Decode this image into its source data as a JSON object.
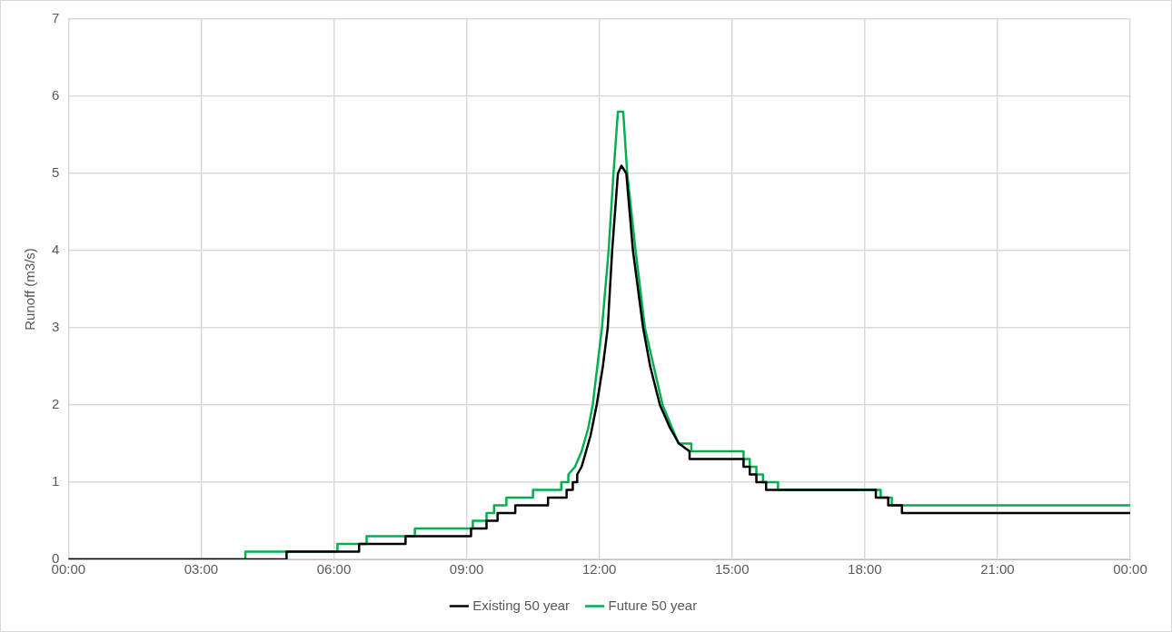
{
  "chart_data": {
    "type": "line",
    "ylabel": "Runoff (m3/s)",
    "xlim": [
      0,
      24
    ],
    "xticks": [
      {
        "value": 0,
        "label": "00:00"
      },
      {
        "value": 3,
        "label": "03:00"
      },
      {
        "value": 6,
        "label": "06:00"
      },
      {
        "value": 9,
        "label": "09:00"
      },
      {
        "value": 12,
        "label": "12:00"
      },
      {
        "value": 15,
        "label": "15:00"
      },
      {
        "value": 18,
        "label": "18:00"
      },
      {
        "value": 21,
        "label": "21:00"
      },
      {
        "value": 24,
        "label": "00:00"
      }
    ],
    "ylim": [
      0,
      7
    ],
    "yticks": [
      0,
      1,
      2,
      3,
      4,
      5,
      6,
      7
    ],
    "grid": true,
    "legend": "bottom",
    "marker": "none",
    "line_style": "solid",
    "series": [
      {
        "name": "Existing 50 year",
        "color": "#000000",
        "x": [
          0,
          4.93,
          4.93,
          6.57,
          6.57,
          7.62,
          7.62,
          9.1,
          9.1,
          9.45,
          9.45,
          9.7,
          9.7,
          10.1,
          10.1,
          10.84,
          10.84,
          11.26,
          11.26,
          11.4,
          11.4,
          11.5,
          11.5,
          11.6,
          11.7,
          11.8,
          11.94,
          12.08,
          12.19,
          12.29,
          12.42,
          12.5,
          12.61,
          12.76,
          12.99,
          13.15,
          13.37,
          13.6,
          13.8,
          14.04,
          14.04,
          15.26,
          15.26,
          15.4,
          15.4,
          15.55,
          15.55,
          15.77,
          15.77,
          18.25,
          18.25,
          18.53,
          18.53,
          18.84,
          18.84,
          24
        ],
        "values": [
          0,
          0,
          0.1,
          0.1,
          0.2,
          0.2,
          0.3,
          0.3,
          0.4,
          0.4,
          0.5,
          0.5,
          0.6,
          0.6,
          0.7,
          0.7,
          0.8,
          0.8,
          0.9,
          0.9,
          1.0,
          1.0,
          1.1,
          1.2,
          1.4,
          1.6,
          2,
          2.5,
          3,
          4,
          5,
          5.1,
          5,
          4,
          3,
          2.5,
          2,
          1.7,
          1.5,
          1.4,
          1.3,
          1.3,
          1.2,
          1.2,
          1.1,
          1.1,
          1.0,
          1.0,
          0.9,
          0.9,
          0.8,
          0.8,
          0.7,
          0.7,
          0.6,
          0.6
        ]
      },
      {
        "name": "Future 50 year",
        "color": "#00b050",
        "x": [
          0,
          4.0,
          4.0,
          6.08,
          6.08,
          6.74,
          6.74,
          7.83,
          7.83,
          9.14,
          9.14,
          9.45,
          9.45,
          9.62,
          9.62,
          9.9,
          9.9,
          10.5,
          10.5,
          11.14,
          11.14,
          11.3,
          11.3,
          11.45,
          11.6,
          11.75,
          11.85,
          12.06,
          12.21,
          12.32,
          12.42,
          12.54,
          12.63,
          12.82,
          13.03,
          13.43,
          13.79,
          14.08,
          14.08,
          15.26,
          15.26,
          15.4,
          15.4,
          15.55,
          15.55,
          15.7,
          15.7,
          16.04,
          16.04,
          18.36,
          18.36,
          18.61,
          18.61,
          24
        ],
        "values": [
          0,
          0,
          0.1,
          0.1,
          0.2,
          0.2,
          0.3,
          0.3,
          0.4,
          0.4,
          0.5,
          0.5,
          0.6,
          0.6,
          0.7,
          0.7,
          0.8,
          0.8,
          0.9,
          0.9,
          1.0,
          1.0,
          1.1,
          1.2,
          1.4,
          1.7,
          2,
          3,
          4,
          5,
          5.8,
          5.8,
          5,
          4,
          3,
          2,
          1.5,
          1.5,
          1.4,
          1.4,
          1.3,
          1.3,
          1.2,
          1.2,
          1.1,
          1.1,
          1.0,
          1.0,
          0.9,
          0.9,
          0.8,
          0.8,
          0.7,
          0.7
        ]
      }
    ]
  }
}
